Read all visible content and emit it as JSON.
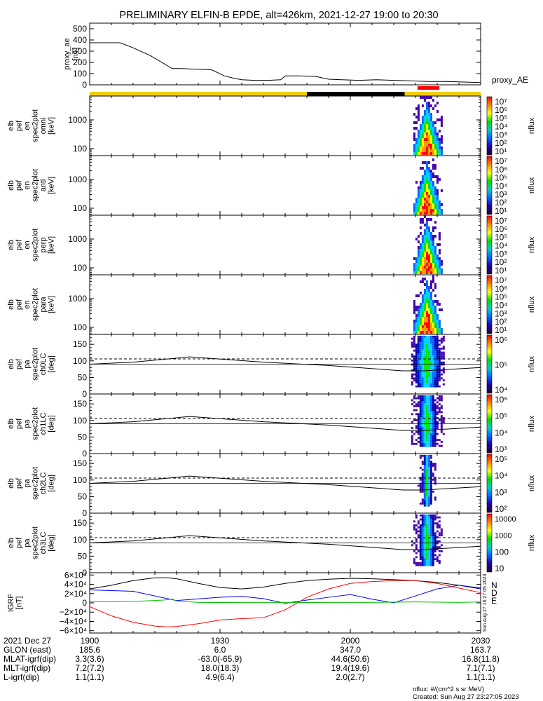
{
  "title": "PRELIMINARY ELFIN-B EPDE, alt=426km, 2021-12-27 19:00 to 20:30",
  "time_axis": {
    "start": "19:00",
    "end": "20:30",
    "tick_labels": [
      "1900",
      "1930",
      "2000",
      "2030"
    ],
    "tick_times_min": [
      0,
      30,
      60,
      90
    ]
  },
  "top_bar": {
    "segments": [
      {
        "from_min": 0,
        "to_min": 50,
        "color": "#f0d000"
      },
      {
        "from_min": 50,
        "to_min": 72.5,
        "color": "#000000"
      },
      {
        "from_min": 72.5,
        "to_min": 90,
        "color": "#f0d000"
      }
    ],
    "science_marker": {
      "from_min": 75.5,
      "to_min": 80.5,
      "color": "#ff0000"
    }
  },
  "colors": {
    "spectrum": [
      "#ff0000",
      "#ff9900",
      "#ffff00",
      "#00dd00",
      "#00ccff",
      "#0066ff",
      "#4400aa",
      "#ffffff"
    ],
    "igrf_n": "#0000ff",
    "igrf_d": "#ff0000",
    "igrf_e": "#00c000"
  },
  "panels": [
    {
      "label_lines": [
        "proxy_ae",
        "[nT]"
      ],
      "right_label": "proxy_AE",
      "kind": "line",
      "ylim": [
        0,
        550
      ],
      "yticks": [
        0,
        100,
        200,
        300,
        400,
        500
      ]
    },
    {
      "label_lines": [
        "elb",
        "pef",
        "en",
        "spec2plot",
        "omni",
        "[keV]"
      ],
      "kind": "energy",
      "yticks": [
        100,
        1000
      ],
      "cbar_ticks": [
        "10⁷",
        "10⁶",
        "10⁵",
        "10⁴",
        "10³",
        "10²",
        "10¹"
      ],
      "cbar_label": "nflux"
    },
    {
      "label_lines": [
        "elb",
        "pef",
        "en",
        "spec2plot",
        "anti",
        "[keV]"
      ],
      "kind": "energy",
      "yticks": [
        100,
        1000
      ],
      "cbar_ticks": [
        "10⁷",
        "10⁶",
        "10⁵",
        "10⁴",
        "10³",
        "10²",
        "10¹"
      ],
      "cbar_label": "nflux"
    },
    {
      "label_lines": [
        "elb",
        "pef",
        "en",
        "spec2plot",
        "perp",
        "[keV]"
      ],
      "kind": "energy",
      "yticks": [
        100,
        1000
      ],
      "cbar_ticks": [
        "10⁷",
        "10⁶",
        "10⁵",
        "10⁴",
        "10³",
        "10²",
        "10¹"
      ],
      "cbar_label": "nflux"
    },
    {
      "label_lines": [
        "elb",
        "pef",
        "en",
        "spec2plot",
        "para",
        "[keV]"
      ],
      "kind": "energy",
      "yticks": [
        100,
        1000
      ],
      "cbar_ticks": [
        "10⁷",
        "10⁶",
        "10⁵",
        "10⁴",
        "10³",
        "10²",
        "10¹"
      ],
      "cbar_label": "nflux"
    },
    {
      "label_lines": [
        "elb",
        "pef",
        "pa",
        "spec2plot",
        "ch0LC",
        "[deg]"
      ],
      "kind": "pa",
      "yticks": [
        0,
        50,
        100,
        150
      ],
      "ylim": [
        0,
        180
      ],
      "cbar_ticks": [
        "10⁶",
        "10⁵",
        "10⁴"
      ],
      "cbar_label": "nflux"
    },
    {
      "label_lines": [
        "elb",
        "pef",
        "pa",
        "spec2plot",
        "ch1LC",
        "[deg]"
      ],
      "kind": "pa",
      "yticks": [
        0,
        50,
        100,
        150
      ],
      "ylim": [
        0,
        180
      ],
      "cbar_ticks": [
        "10⁶",
        "10⁵",
        "10⁴",
        "10³"
      ],
      "cbar_label": "nflux"
    },
    {
      "label_lines": [
        "elb",
        "pef",
        "pa",
        "spec2plot",
        "ch2LC",
        "[deg]"
      ],
      "kind": "pa",
      "yticks": [
        0,
        50,
        100,
        150
      ],
      "ylim": [
        0,
        180
      ],
      "cbar_ticks": [
        "10⁵",
        "10⁴",
        "10³",
        "10²"
      ],
      "cbar_label": "nflux"
    },
    {
      "label_lines": [
        "elb",
        "pef",
        "pa",
        "spec2plot",
        "ch3LC",
        "[deg]"
      ],
      "kind": "pa",
      "yticks": [
        0,
        50,
        100,
        150
      ],
      "ylim": [
        0,
        180
      ],
      "cbar_ticks": [
        "10000",
        "1000",
        "100",
        "10"
      ],
      "cbar_label": "nflux"
    },
    {
      "label_lines": [
        "IGRF",
        "[nT]"
      ],
      "kind": "igrf",
      "ylim": [
        -65000,
        65000
      ],
      "ytick_labels": [
        "6×10⁴",
        "4×10⁴",
        "2×10⁴",
        "0",
        "−2×10⁴",
        "−4×10⁴",
        "−6×10⁴"
      ],
      "ytick_values": [
        60000,
        40000,
        20000,
        0,
        -20000,
        -40000,
        -60000
      ],
      "legend": [
        "N",
        "D",
        "E"
      ]
    }
  ],
  "chart_data": {
    "type": "line",
    "title": "PRELIMINARY ELFIN-B EPDE, alt=426km, 2021-12-27 19:00 to 20:30",
    "x_unit": "minutes after 19:00",
    "series": [
      {
        "name": "proxy_AE",
        "x": [
          0,
          3,
          7,
          10,
          14,
          19,
          21,
          24,
          28,
          31,
          33,
          35,
          38,
          41,
          44,
          45,
          48,
          52,
          55,
          58,
          62,
          66,
          70,
          74,
          78,
          82,
          86,
          90
        ],
        "y": [
          375,
          375,
          375,
          330,
          260,
          145,
          145,
          140,
          135,
          80,
          60,
          45,
          40,
          40,
          45,
          80,
          80,
          75,
          50,
          45,
          40,
          45,
          40,
          35,
          30,
          30,
          25,
          20
        ]
      },
      {
        "name": "N",
        "x": [
          0,
          10,
          20,
          30,
          35,
          40,
          45,
          50,
          55,
          60,
          65,
          70,
          75,
          80,
          85,
          90
        ],
        "y": [
          28000,
          25000,
          5000,
          12000,
          14000,
          9000,
          -1000,
          6000,
          12000,
          18000,
          8000,
          0,
          15000,
          30000,
          38000,
          30000
        ]
      },
      {
        "name": "D",
        "x": [
          0,
          5,
          10,
          15,
          18,
          20,
          25,
          30,
          35,
          40,
          45,
          50,
          55,
          60,
          65,
          70,
          75,
          80,
          85,
          90
        ],
        "y": [
          -8000,
          -28000,
          -42000,
          -50000,
          -52000,
          -51000,
          -45000,
          -37000,
          -34000,
          -32000,
          -15000,
          12000,
          30000,
          42000,
          46000,
          48000,
          48000,
          42000,
          32000,
          22000
        ]
      },
      {
        "name": "E",
        "x": [
          0,
          10,
          17,
          19,
          20,
          25,
          35,
          45,
          55,
          65,
          75,
          85,
          90
        ],
        "y": [
          2000,
          3000,
          6000,
          8000,
          4000,
          1000,
          500,
          500,
          1000,
          1000,
          2000,
          1000,
          2000
        ]
      },
      {
        "name": "total",
        "x": [
          0,
          5,
          10,
          15,
          18,
          20,
          25,
          30,
          35,
          40,
          45,
          50,
          55,
          60,
          65,
          70,
          75,
          80,
          85,
          90
        ],
        "y": [
          30000,
          38000,
          48000,
          54000,
          54000,
          52000,
          42000,
          33000,
          30000,
          34000,
          42000,
          48000,
          51000,
          53000,
          52000,
          50000,
          48000,
          44000,
          38000,
          32000
        ]
      },
      {
        "name": "ch0LC field-aligned angle",
        "x": [
          0,
          10,
          23,
          40,
          55,
          72,
          77,
          90
        ],
        "y": [
          90,
          96,
          112,
          96,
          86,
          70,
          70,
          80
        ]
      },
      {
        "name": "ch0LC loss cone",
        "x": [
          0,
          90
        ],
        "y": [
          106,
          106
        ]
      }
    ],
    "energy_spectrograms": {
      "time_range_min": [
        74.5,
        81.0
      ],
      "peak_time_min": 77.5,
      "max_energy_keV": 5000,
      "min_energy_keV": 70
    }
  },
  "footer": {
    "rows": [
      {
        "label": "2021 Dec 27",
        "values": [
          "1900",
          "1930",
          "2000",
          "2030"
        ]
      },
      {
        "label": "GLON (east)",
        "values": [
          "185.6",
          "6.0",
          "347.0",
          "163.7"
        ]
      },
      {
        "label": "MLAT-igrf(dip)",
        "values": [
          "3.3(3.6)",
          "-63.0(-65.9)",
          "44.6(50.6)",
          "16.8(11.8)"
        ]
      },
      {
        "label": "MLT-igrf(dip)",
        "values": [
          "7.2(7.2)",
          "18.0(18.3)",
          "19.4(19.6)",
          "7.1(7.1)"
        ]
      },
      {
        "label": "L-igrf(dip)",
        "values": [
          "1.1(1.1)",
          "4.9(6.4)",
          "2.0(2.7)",
          "1.1(1.1)"
        ]
      }
    ],
    "units_note": "nflux: #/(cm^2 s sr MeV)",
    "created": "Created: Sun Aug 27 23:27:05 2023",
    "side_stamp": "Sun Aug 27 16:27:05 2023"
  }
}
